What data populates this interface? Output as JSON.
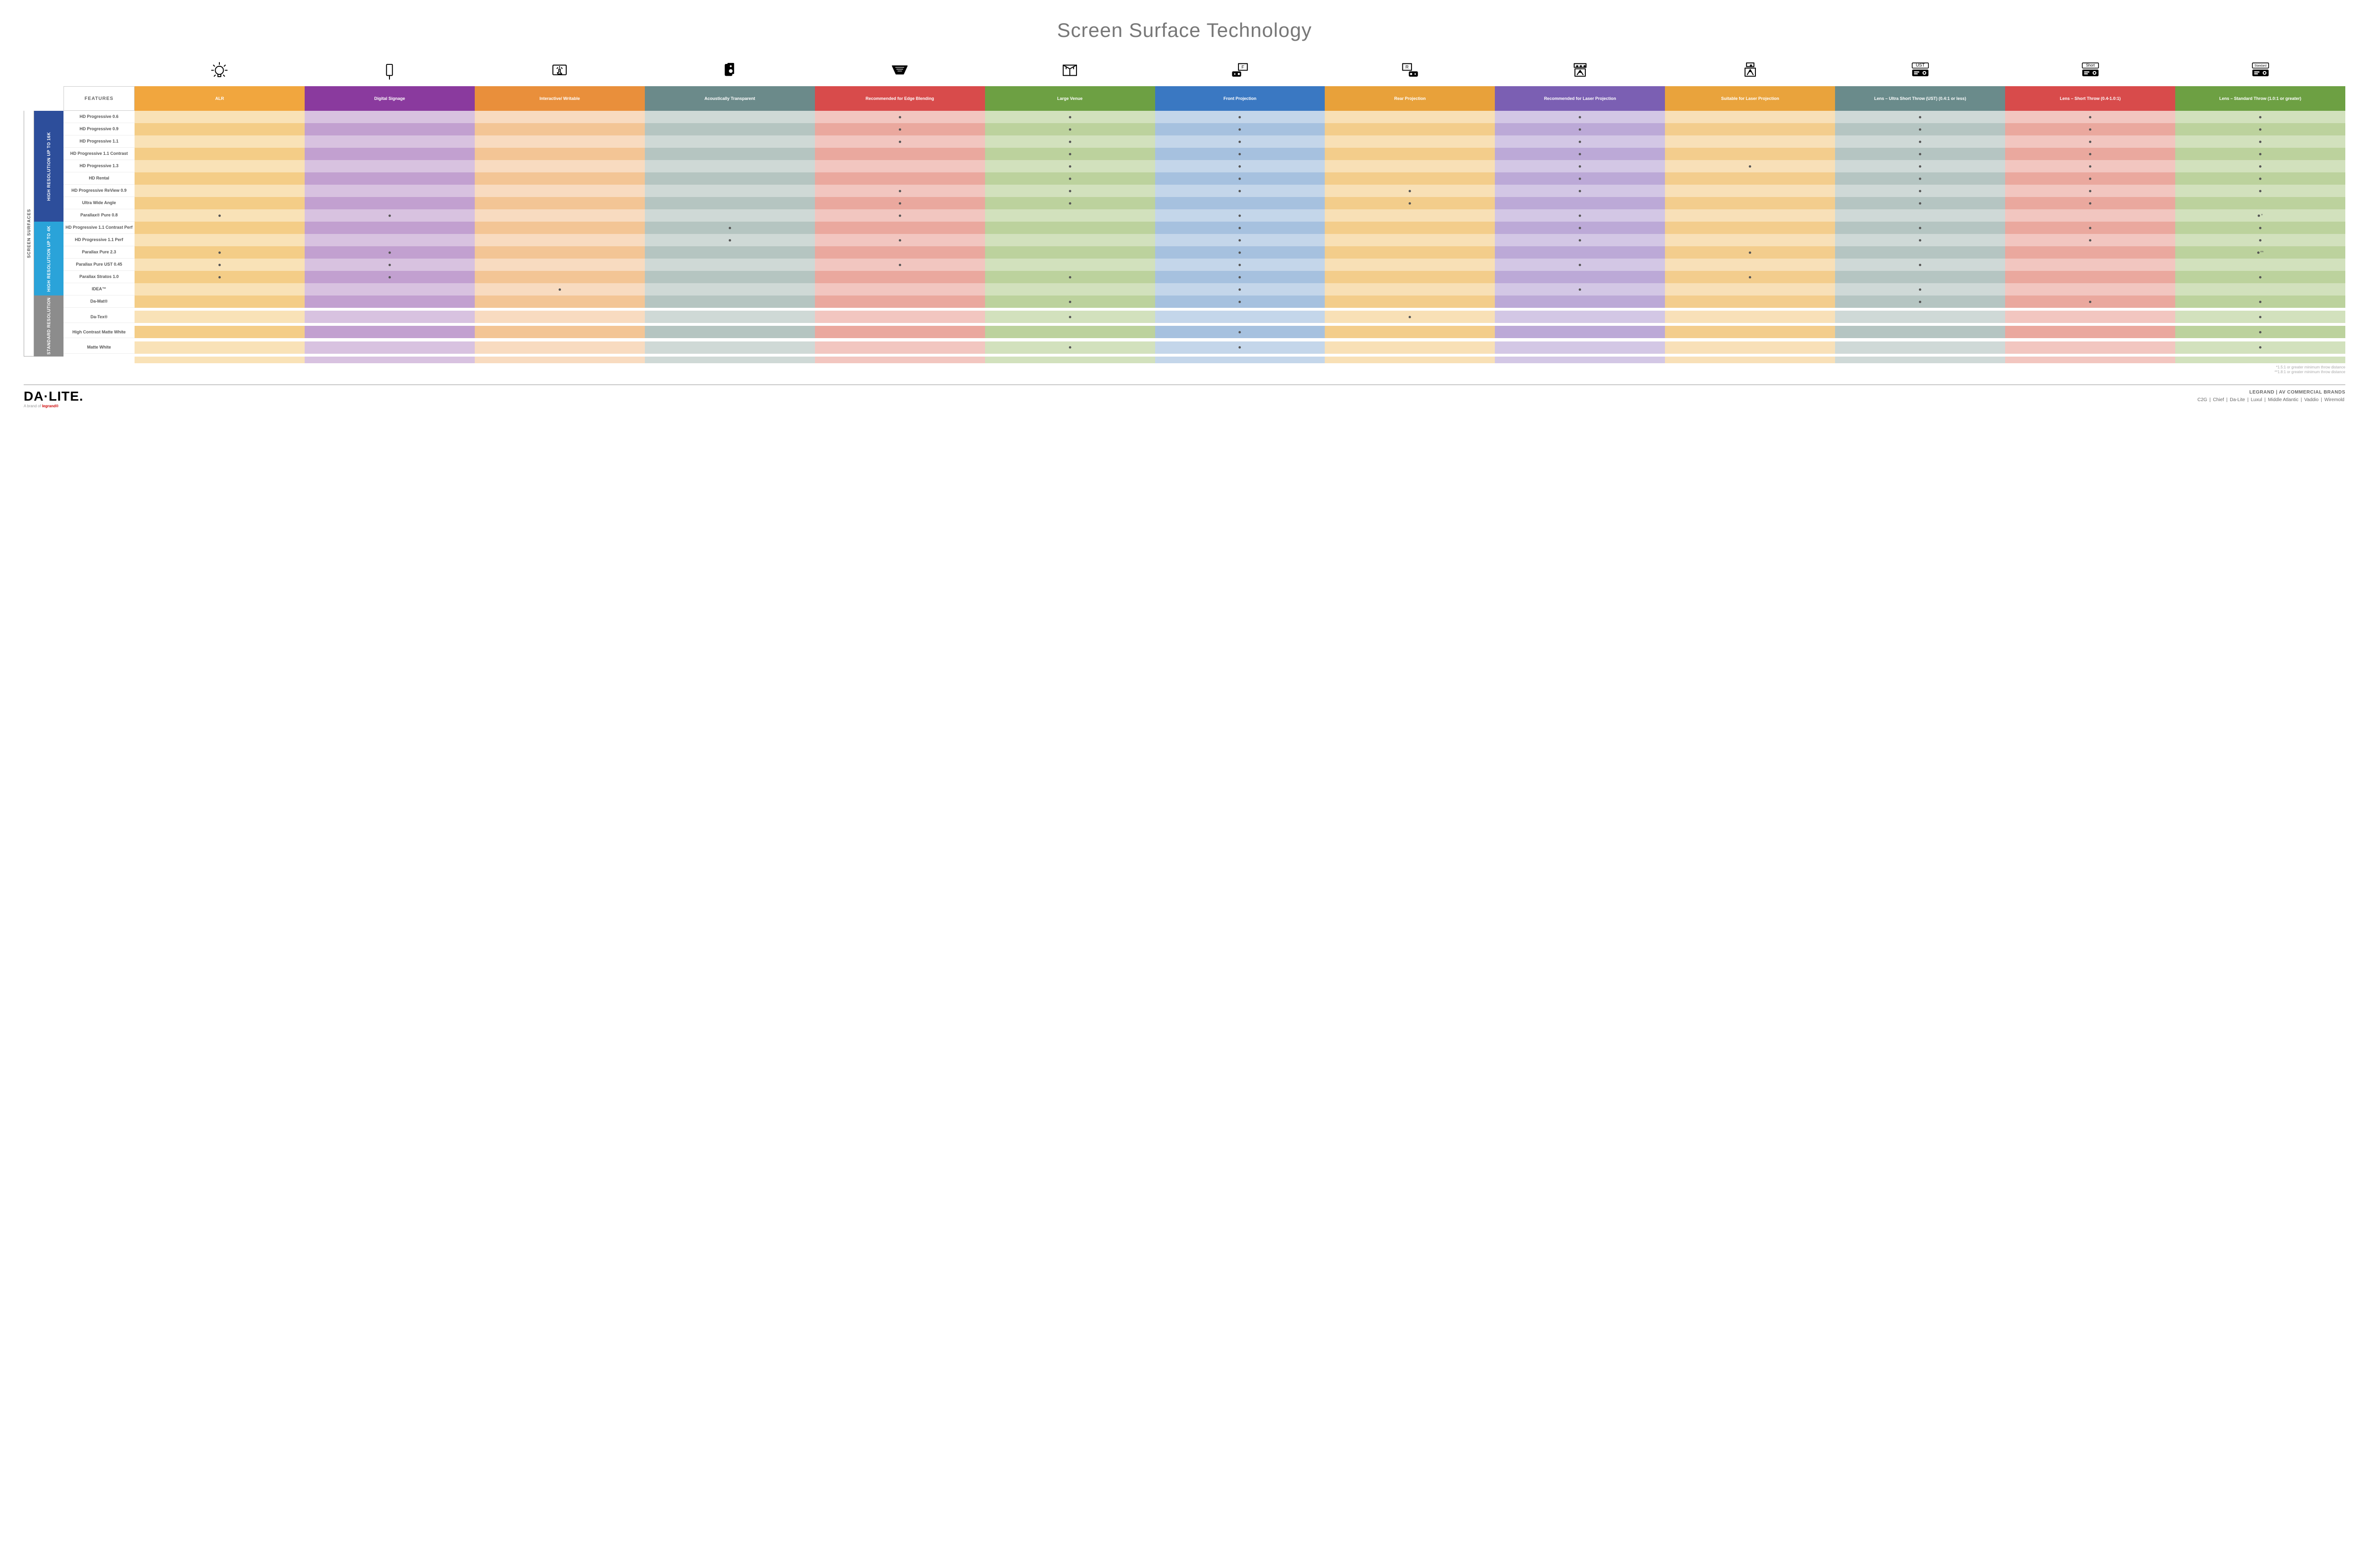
{
  "title": "Screen Surface Technology",
  "logo": {
    "main": "DA·LITE.",
    "sub_prefix": "A brand of ",
    "sub_brand": "legrand®"
  },
  "footnotes": [
    "*1.5:1 or greater minimum throw distance",
    "**1.8:1 or greater minimum throw distance"
  ],
  "brands": {
    "headline": "LEGRAND | AV COMMERCIAL BRANDS",
    "list": [
      "C2G",
      "Chief",
      "Da-Lite",
      "Luxul",
      "Middle Atlantic",
      "Vaddio",
      "Wiremold"
    ]
  },
  "features_label": "FEATURES",
  "side_outer": "SCREEN SURFACES",
  "groups": [
    {
      "label": "HIGH RESOLUTION UP TO 16K",
      "color": "#2d4e9b",
      "rows": 9
    },
    {
      "label": "HIGH RESOLUTION UP TO 4K",
      "color": "#2aa3d9",
      "rows": 6
    },
    {
      "label": "STANDARD RESOLUTION",
      "color": "#8c8c8c",
      "rows": 4
    }
  ],
  "columns": [
    {
      "label": "ALR",
      "icon": "bulb",
      "hdr": "#f1a63e",
      "light": "#f9e2b7",
      "dark": "#f4cd87"
    },
    {
      "label": "Digital Signage",
      "icon": "signage",
      "hdr": "#8a3a9e",
      "light": "#d8c2e0",
      "dark": "#c2a0d0"
    },
    {
      "label": "Interactive/ Writable",
      "icon": "touch",
      "hdr": "#e98f3b",
      "light": "#f8dbc0",
      "dark": "#f3c595"
    },
    {
      "label": "Acoustically Transparent",
      "icon": "speaker",
      "hdr": "#6b8a8a",
      "light": "#cfd9d6",
      "dark": "#b5c5c1"
    },
    {
      "label": "Recommended for Edge Blending",
      "icon": "blend",
      "hdr": "#d84b4b",
      "light": "#f2c6c0",
      "dark": "#eaa89e"
    },
    {
      "label": "Large Venue",
      "icon": "venue",
      "hdr": "#6da043",
      "light": "#d2e1bd",
      "dark": "#bcd29d"
    },
    {
      "label": "Front Projection",
      "icon": "front",
      "hdr": "#3a78c2",
      "light": "#c4d6ea",
      "dark": "#a6c1df"
    },
    {
      "label": "Rear Projection",
      "icon": "rear",
      "hdr": "#e8a13a",
      "light": "#f8e0b6",
      "dark": "#f3cd8b"
    },
    {
      "label": "Recommended for Laser Projection",
      "icon": "laser-rec",
      "hdr": "#7b5fb3",
      "light": "#d3c7e5",
      "dark": "#bca9d7"
    },
    {
      "label": "Suitable for Laser Projection",
      "icon": "laser-suit",
      "hdr": "#e9a33c",
      "light": "#f8e0b8",
      "dark": "#f3cd8d"
    },
    {
      "label": "Lens – Ultra Short Throw (UST) (0.4:1 or less)",
      "icon": "ust",
      "hdr": "#6a8b8b",
      "light": "#cfd9d7",
      "dark": "#b5c5c2"
    },
    {
      "label": "Lens – Short Throw (0.4-1.0:1)",
      "icon": "short",
      "hdr": "#d84b4b",
      "light": "#f2c6c0",
      "dark": "#eaa89e"
    },
    {
      "label": "Lens – Standard Throw (1.0:1 or greater)",
      "icon": "std",
      "hdr": "#6da043",
      "light": "#d2e1bd",
      "dark": "#bcd29d"
    }
  ],
  "rows": [
    {
      "name": "HD Progressive 0.6",
      "cells": [
        "",
        "",
        "",
        "",
        "•",
        "•",
        "•",
        "",
        "•",
        "",
        "•",
        "•",
        "•"
      ]
    },
    {
      "name": "HD Progressive 0.9",
      "cells": [
        "",
        "",
        "",
        "",
        "•",
        "•",
        "•",
        "",
        "•",
        "",
        "•",
        "•",
        "•"
      ]
    },
    {
      "name": "HD Progressive 1.1",
      "cells": [
        "",
        "",
        "",
        "",
        "•",
        "•",
        "•",
        "",
        "•",
        "",
        "•",
        "•",
        "•"
      ]
    },
    {
      "name": "HD Progressive 1.1 Contrast",
      "cells": [
        "",
        "",
        "",
        "",
        "",
        "•",
        "•",
        "",
        "•",
        "",
        "•",
        "•",
        "•"
      ]
    },
    {
      "name": "HD Progressive 1.3",
      "cells": [
        "",
        "",
        "",
        "",
        "",
        "•",
        "•",
        "",
        "•",
        "•",
        "•",
        "•",
        "•"
      ]
    },
    {
      "name": "HD Rental",
      "cells": [
        "",
        "",
        "",
        "",
        "",
        "•",
        "•",
        "",
        "•",
        "",
        "•",
        "•",
        "•"
      ]
    },
    {
      "name": "HD Progressive ReView 0.9",
      "cells": [
        "",
        "",
        "",
        "",
        "•",
        "•",
        "•",
        "•",
        "•",
        "",
        "•",
        "•",
        "•"
      ]
    },
    {
      "name": "Ultra Wide Angle",
      "cells": [
        "",
        "",
        "",
        "",
        "•",
        "•",
        "",
        "•",
        "",
        "",
        "•",
        "•",
        ""
      ]
    },
    {
      "name": "Parallax® Pure 0.8",
      "cells": [
        "•",
        "•",
        "",
        "",
        "•",
        "",
        "•",
        "",
        "•",
        "",
        "",
        "",
        "•*"
      ]
    },
    {
      "name": "HD Progressive 1.1 Contrast Perf",
      "cells": [
        "",
        "",
        "",
        "•",
        "",
        "",
        "•",
        "",
        "•",
        "",
        "•",
        "•",
        "•"
      ]
    },
    {
      "name": "HD Progressive 1.1 Perf",
      "cells": [
        "",
        "",
        "",
        "•",
        "•",
        "",
        "•",
        "",
        "•",
        "",
        "•",
        "•",
        "•"
      ]
    },
    {
      "name": "Parallax Pure 2.3",
      "cells": [
        "•",
        "•",
        "",
        "",
        "",
        "",
        "•",
        "",
        "",
        "•",
        "",
        "",
        "•**"
      ]
    },
    {
      "name": "Parallax Pure UST 0.45",
      "cells": [
        "•",
        "•",
        "",
        "",
        "•",
        "",
        "•",
        "",
        "•",
        "",
        "•",
        "",
        ""
      ]
    },
    {
      "name": "Parallax Stratos 1.0",
      "cells": [
        "•",
        "•",
        "",
        "",
        "",
        "•",
        "•",
        "",
        "",
        "•",
        "",
        "",
        "•"
      ]
    },
    {
      "name": "IDEA™",
      "cells": [
        "",
        "",
        "•",
        "",
        "",
        "",
        "•",
        "",
        "•",
        "",
        "•",
        "",
        ""
      ]
    },
    {
      "name": "Da-Mat®",
      "cells": [
        "",
        "",
        "",
        "",
        "",
        "•",
        "•",
        "",
        "",
        "",
        "•",
        "•",
        "•"
      ]
    },
    {
      "name": "Da-Tex®",
      "cells": [
        "",
        "",
        "",
        "",
        "",
        "•",
        "",
        "•",
        "",
        "",
        "",
        "",
        "•"
      ]
    },
    {
      "name": "High Contrast Matte White",
      "cells": [
        "",
        "",
        "",
        "",
        "",
        "",
        "•",
        "",
        "",
        "",
        "",
        "",
        "•"
      ]
    },
    {
      "name": "Matte White",
      "cells": [
        "",
        "",
        "",
        "",
        "",
        "•",
        "•",
        "",
        "",
        "",
        "",
        "",
        "•"
      ]
    }
  ]
}
